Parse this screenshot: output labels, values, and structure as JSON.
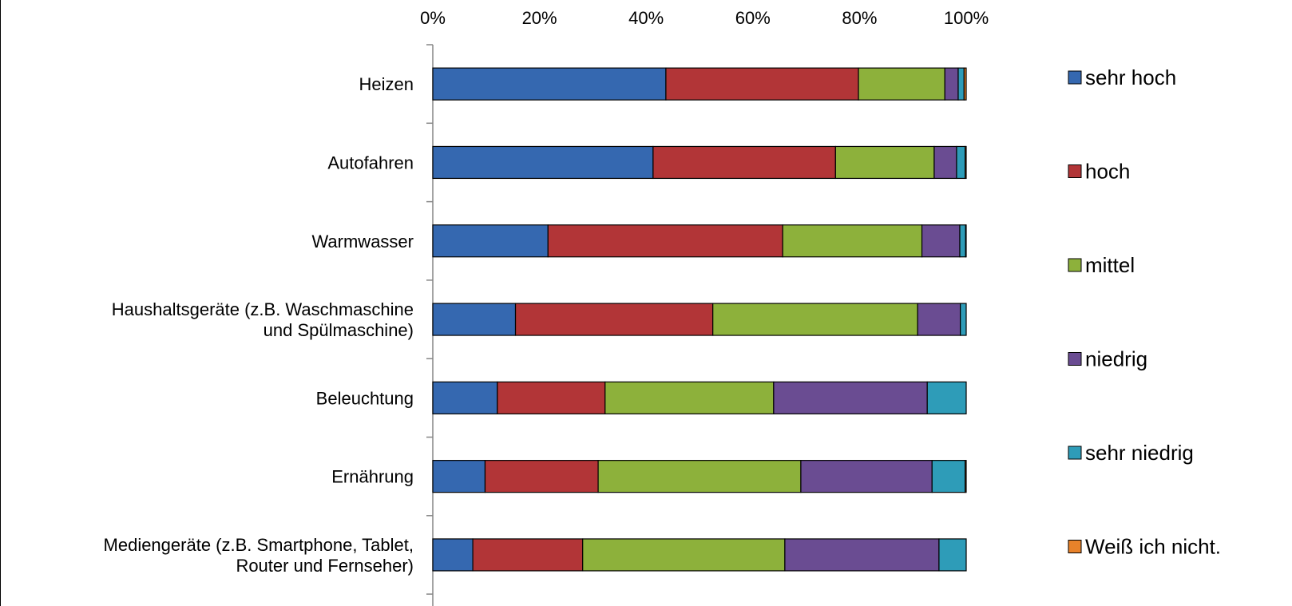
{
  "chart_data": {
    "type": "bar",
    "orientation": "horizontal",
    "stacked": "percent",
    "title": "",
    "xlabel": "",
    "ylabel": "",
    "xlim": [
      0,
      100
    ],
    "x_ticks": [
      "0%",
      "20%",
      "40%",
      "60%",
      "80%",
      "100%"
    ],
    "x_axis_position": "top",
    "grid": false,
    "legend_position": "right",
    "categories": [
      [
        "Heizen"
      ],
      [
        "Autofahren"
      ],
      [
        "Warmwasser"
      ],
      [
        "Haushaltsgeräte (z.B. Waschmaschine",
        "und Spülmaschine)"
      ],
      [
        "Beleuchtung"
      ],
      [
        "Ernährung"
      ],
      [
        "Mediengeräte (z.B. Smartphone, Tablet,",
        "Router und Fernseher)"
      ]
    ],
    "series": [
      {
        "name": "sehr hoch",
        "color": "#3568B0",
        "values": [
          43.7,
          41.3,
          21.6,
          15.5,
          12.1,
          9.8,
          7.5
        ]
      },
      {
        "name": "hoch",
        "color": "#B23537",
        "values": [
          36.1,
          34.2,
          44.0,
          37.0,
          20.2,
          21.2,
          20.6
        ]
      },
      {
        "name": "mittel",
        "color": "#8DB13B",
        "values": [
          16.2,
          18.5,
          26.1,
          38.4,
          31.6,
          38.0,
          37.9
        ]
      },
      {
        "name": "niedrig",
        "color": "#6A4C92",
        "values": [
          2.5,
          4.2,
          7.1,
          8.0,
          28.8,
          24.6,
          28.9
        ]
      },
      {
        "name": "sehr niedrig",
        "color": "#2E9CB8",
        "values": [
          1.1,
          1.6,
          1.1,
          1.1,
          7.3,
          6.2,
          5.1
        ]
      },
      {
        "name": "Weiß ich nicht.",
        "color": "#E8822A",
        "values": [
          0.4,
          0.2,
          0.1,
          0.0,
          0.0,
          0.2,
          0.0
        ]
      }
    ]
  }
}
